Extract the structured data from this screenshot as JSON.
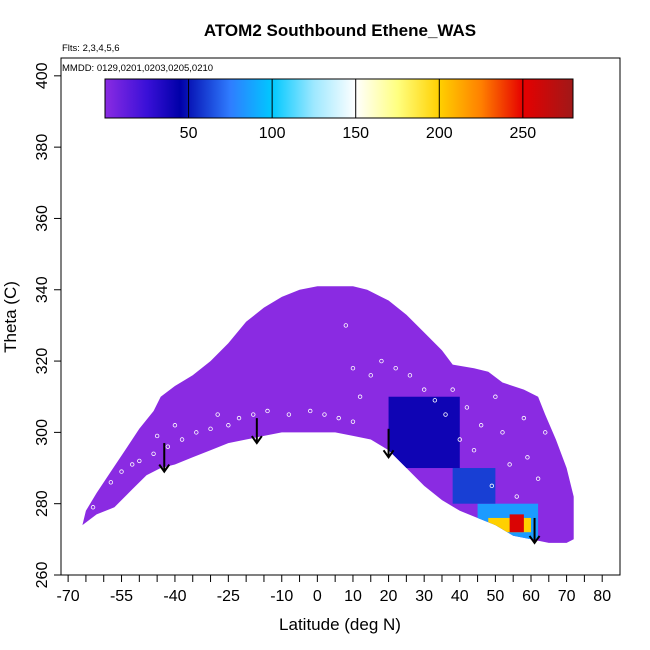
{
  "chart_data": {
    "type": "heatmap",
    "title": "ATOM2 Southbound Ethene_WAS",
    "flights_note": "Flts: 2,3,4,5,6",
    "mmdd_note": "MMDD: 0129,0201,0203,0205,0210",
    "xlabel": "Latitude (deg N)",
    "ylabel": "Theta (C)",
    "xlim": [
      -72,
      85
    ],
    "ylim": [
      260,
      405
    ],
    "x_ticks": [
      -70,
      -55,
      -40,
      -25,
      -10,
      0,
      10,
      20,
      30,
      40,
      50,
      60,
      70,
      80
    ],
    "x_tick_labels": [
      "-70",
      "-55",
      "-40",
      "-25",
      "-10",
      "0",
      "10",
      "20",
      "30",
      "40",
      "50",
      "60",
      "70",
      "80"
    ],
    "x_minor_ticks": [
      -65,
      -60,
      -50,
      -45,
      -35,
      -30,
      -20,
      -15,
      -5,
      5,
      15,
      25,
      35,
      45,
      55,
      65,
      75
    ],
    "y_ticks": [
      260,
      280,
      300,
      320,
      340,
      360,
      380,
      400
    ],
    "y_tick_labels": [
      "260",
      "280",
      "300",
      "320",
      "340",
      "360",
      "380",
      "400"
    ],
    "colorbar": {
      "range": [
        0,
        280
      ],
      "ticks": [
        50,
        100,
        150,
        200,
        250
      ],
      "tick_labels": [
        "50",
        "100",
        "150",
        "200",
        "250"
      ],
      "stops": [
        {
          "v": 0,
          "c": "#8a2be2"
        },
        {
          "v": 25,
          "c": "#3a10d8"
        },
        {
          "v": 45,
          "c": "#0000a8"
        },
        {
          "v": 75,
          "c": "#2f7dff"
        },
        {
          "v": 100,
          "c": "#00c8ff"
        },
        {
          "v": 125,
          "c": "#9ee8ff"
        },
        {
          "v": 150,
          "c": "#ffffff"
        },
        {
          "v": 175,
          "c": "#ffff80"
        },
        {
          "v": 200,
          "c": "#ffd000"
        },
        {
          "v": 225,
          "c": "#ff8000"
        },
        {
          "v": 250,
          "c": "#e60000"
        },
        {
          "v": 280,
          "c": "#a01818"
        }
      ]
    },
    "domain_outline": [
      [
        -66,
        274
      ],
      [
        -62,
        277
      ],
      [
        -57,
        279
      ],
      [
        -52,
        284
      ],
      [
        -48,
        288
      ],
      [
        -44,
        290
      ],
      [
        -40,
        291
      ],
      [
        -35,
        293
      ],
      [
        -30,
        295
      ],
      [
        -25,
        297
      ],
      [
        -20,
        298
      ],
      [
        -15,
        299
      ],
      [
        -10,
        300
      ],
      [
        -5,
        300
      ],
      [
        0,
        300
      ],
      [
        5,
        300
      ],
      [
        10,
        299
      ],
      [
        15,
        298
      ],
      [
        20,
        295
      ],
      [
        25,
        290
      ],
      [
        30,
        285
      ],
      [
        35,
        281
      ],
      [
        40,
        278
      ],
      [
        45,
        276
      ],
      [
        50,
        274
      ],
      [
        55,
        271
      ],
      [
        60,
        270
      ],
      [
        65,
        269
      ],
      [
        70,
        269
      ],
      [
        72,
        270
      ],
      [
        72,
        282
      ],
      [
        70,
        290
      ],
      [
        67,
        298
      ],
      [
        64,
        305
      ],
      [
        62,
        310
      ],
      [
        58,
        312
      ],
      [
        52,
        314
      ],
      [
        48,
        317
      ],
      [
        44,
        318
      ],
      [
        38,
        319
      ],
      [
        35,
        323
      ],
      [
        30,
        328
      ],
      [
        25,
        333
      ],
      [
        20,
        337
      ],
      [
        14,
        340
      ],
      [
        10,
        341
      ],
      [
        0,
        341
      ],
      [
        -5,
        340
      ],
      [
        -10,
        338
      ],
      [
        -15,
        335
      ],
      [
        -20,
        331
      ],
      [
        -25,
        325
      ],
      [
        -30,
        320
      ],
      [
        -35,
        316
      ],
      [
        -40,
        313
      ],
      [
        -44,
        310
      ],
      [
        -46,
        306
      ],
      [
        -50,
        301
      ],
      [
        -54,
        295
      ],
      [
        -58,
        289
      ],
      [
        -62,
        283
      ],
      [
        -65,
        278
      ],
      [
        -66,
        274
      ]
    ],
    "high_patches": [
      {
        "x": [
          45,
          62
        ],
        "y": [
          270,
          280
        ],
        "value": 85
      },
      {
        "x": [
          48,
          60
        ],
        "y": [
          272,
          276
        ],
        "value": 200
      },
      {
        "x": [
          54,
          58
        ],
        "y": [
          272,
          277
        ],
        "value": 255
      },
      {
        "x": [
          38,
          50
        ],
        "y": [
          280,
          290
        ],
        "value": 60
      },
      {
        "x": [
          25,
          35
        ],
        "y": [
          300,
          306
        ],
        "value": 70
      },
      {
        "x": [
          20,
          40
        ],
        "y": [
          290,
          310
        ],
        "value": 40
      }
    ],
    "flight_points": [
      [
        -63,
        279
      ],
      [
        -58,
        286
      ],
      [
        -55,
        289
      ],
      [
        -52,
        291
      ],
      [
        -46,
        294
      ],
      [
        -42,
        296
      ],
      [
        -38,
        298
      ],
      [
        -34,
        300
      ],
      [
        -30,
        301
      ],
      [
        -25,
        302
      ],
      [
        -22,
        304
      ],
      [
        -18,
        305
      ],
      [
        -14,
        306
      ],
      [
        -8,
        305
      ],
      [
        -2,
        306
      ],
      [
        2,
        305
      ],
      [
        6,
        304
      ],
      [
        10,
        303
      ],
      [
        12,
        310
      ],
      [
        15,
        316
      ],
      [
        18,
        320
      ],
      [
        22,
        318
      ],
      [
        26,
        316
      ],
      [
        30,
        312
      ],
      [
        33,
        309
      ],
      [
        36,
        305
      ],
      [
        38,
        312
      ],
      [
        40,
        298
      ],
      [
        42,
        307
      ],
      [
        44,
        295
      ],
      [
        46,
        302
      ],
      [
        47,
        322
      ],
      [
        49,
        285
      ],
      [
        50,
        310
      ],
      [
        51,
        318
      ],
      [
        52,
        300
      ],
      [
        54,
        291
      ],
      [
        55,
        316
      ],
      [
        56,
        282
      ],
      [
        58,
        304
      ],
      [
        59,
        293
      ],
      [
        60,
        314
      ],
      [
        62,
        287
      ],
      [
        64,
        300
      ],
      [
        10,
        318
      ],
      [
        8,
        330
      ],
      [
        -40,
        302
      ],
      [
        -28,
        305
      ],
      [
        -50,
        292
      ],
      [
        -45,
        299
      ]
    ],
    "arrows": [
      {
        "lat": -43,
        "theta_top": 297,
        "theta_bottom": 289
      },
      {
        "lat": -17,
        "theta_top": 304,
        "theta_bottom": 297
      },
      {
        "lat": 20,
        "theta_top": 301,
        "theta_bottom": 293
      },
      {
        "lat": 61,
        "theta_top": 276,
        "theta_bottom": 269
      }
    ]
  }
}
